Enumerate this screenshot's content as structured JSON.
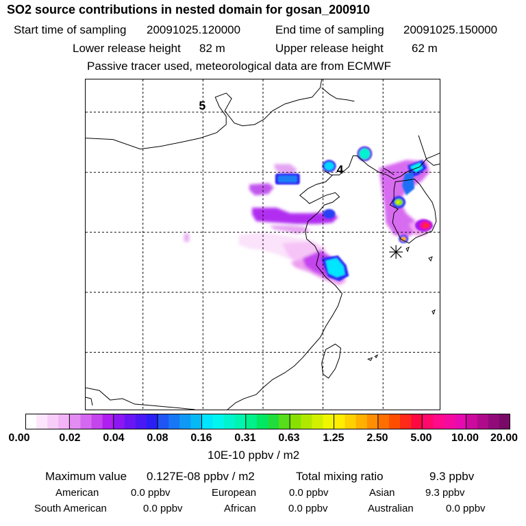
{
  "header": {
    "title": "SO2 source contributions in nested domain for gosan_200910",
    "start_label": "Start time of sampling",
    "start_value": "20091025.120000",
    "end_label": "End time of sampling",
    "end_value": "20091025.150000",
    "lower_label": "Lower release height",
    "lower_value": "82 m",
    "upper_label": "Upper release height",
    "upper_value": "62 m",
    "note": "Passive tracer used, meteorological data are from ECMWF"
  },
  "map": {
    "grid_labels": [
      "5",
      "4"
    ]
  },
  "colorbar": {
    "ticks": [
      "0.00",
      "0.02",
      "0.04",
      "0.08",
      "0.16",
      "0.31",
      "0.63",
      "1.25",
      "2.50",
      "5.00",
      "10.00",
      "20.00"
    ],
    "unit": "10E-10 ppbv / m2",
    "colors": [
      [
        "#ffffff",
        "#fde6fd",
        "#f9cdf9",
        "#f3b3f7"
      ],
      [
        "#e38cf2",
        "#d568f0",
        "#c444ee",
        "#ae1ff0"
      ],
      [
        "#8c17f2",
        "#6a16f4",
        "#4a18f5",
        "#2a1ff5"
      ],
      [
        "#1f55f5",
        "#1777f5",
        "#0f99f5",
        "#05b9f5"
      ],
      [
        "#00e6ff",
        "#00f5ee",
        "#00f5cf",
        "#00f5b0"
      ],
      [
        "#00f08a",
        "#00e862",
        "#21dd3b",
        "#57dd1a"
      ],
      [
        "#88e000",
        "#b0e800",
        "#d2f000",
        "#f0f500"
      ],
      [
        "#ffec00",
        "#ffd000",
        "#ffb000",
        "#ff8f00"
      ],
      [
        "#ff6f00",
        "#ff4e00",
        "#ff2a1a",
        "#ff0a40"
      ],
      [
        "#ff0a6a",
        "#ff0a8a",
        "#f50aa0",
        "#e60ab0"
      ],
      [
        "#cc0a9e",
        "#b00a8c",
        "#920a7a",
        "#7a0a68"
      ]
    ]
  },
  "stats": {
    "max_label": "Maximum value",
    "max_value": "0.127E-08 ppbv / m2",
    "total_label": "Total mixing ratio",
    "total_value": "9.3 ppbv",
    "regions": [
      {
        "name": "American",
        "value": "0.0 ppbv"
      },
      {
        "name": "European",
        "value": "0.0 ppbv"
      },
      {
        "name": "Asian",
        "value": "9.3 ppbv"
      },
      {
        "name": "South American",
        "value": "0.0 ppbv"
      },
      {
        "name": "African",
        "value": "0.0 ppbv"
      },
      {
        "name": "Australian",
        "value": "0.0 ppbv"
      }
    ]
  }
}
